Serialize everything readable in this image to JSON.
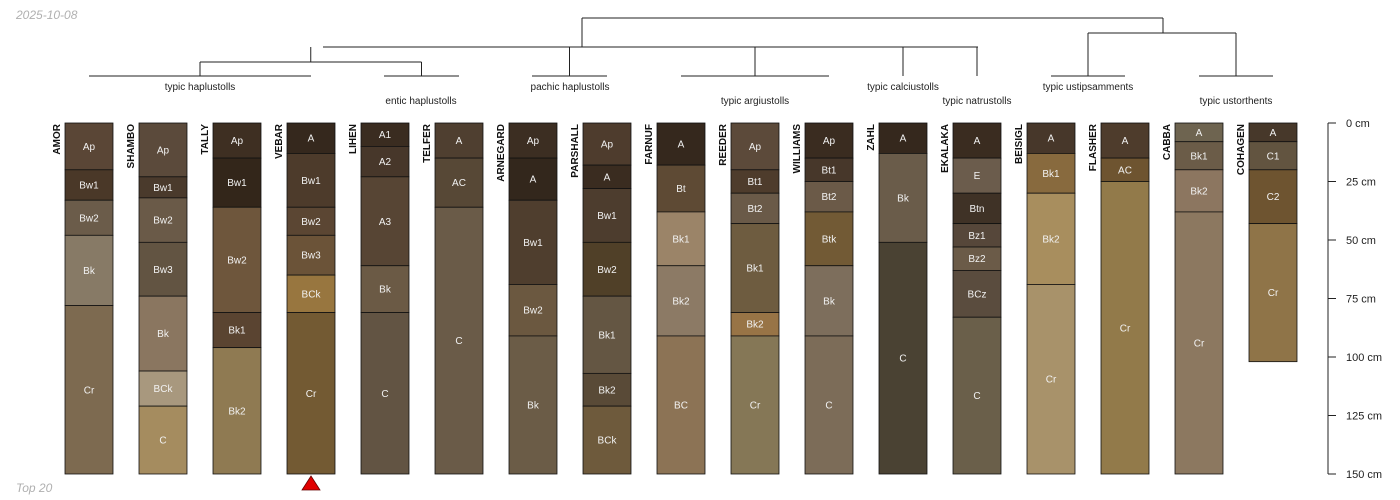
{
  "corner_date": "2025-10-08",
  "corner_note": "Top 20",
  "colors": {
    "line": "#222222",
    "marker": "#e00000",
    "horizon_border": "#111111"
  },
  "chart_data": {
    "type": "soil-profile-sketch",
    "title": "",
    "depth_axis": {
      "label_unit": "cm",
      "range": [
        0,
        150
      ],
      "ticks": [
        0,
        25,
        50,
        75,
        100,
        125,
        150
      ],
      "tick_labels": [
        "0 cm",
        "25 cm",
        "50 cm",
        "75 cm",
        "100 cm",
        "125 cm",
        "150 cm"
      ]
    },
    "dendrogram": {
      "root": "all profiles",
      "merge_order": "typic haplustolls + entic haplustolls, then + pachic haplustolls; typic argiustolls + (typic calciustolls + typic natrustolls); typic ustipsamments + typic ustorthents"
    },
    "groups": [
      {
        "name": "typic haplustolls",
        "members": [
          "AMOR",
          "SHAMBO",
          "TALLY",
          "VEBAR"
        ]
      },
      {
        "name": "entic haplustolls",
        "members": [
          "LIHEN",
          "TELFER"
        ]
      },
      {
        "name": "pachic haplustolls",
        "members": [
          "ARNEGARD",
          "PARSHALL"
        ]
      },
      {
        "name": "typic argiustolls",
        "members": [
          "FARNUF",
          "REEDER",
          "WILLIAMS"
        ]
      },
      {
        "name": "typic calciustolls",
        "members": [
          "ZAHL"
        ]
      },
      {
        "name": "typic natrustolls",
        "members": [
          "EKALAKA"
        ]
      },
      {
        "name": "typic ustipsamments",
        "members": [
          "BEISIGL",
          "FLASHER"
        ]
      },
      {
        "name": "typic ustorthents",
        "members": [
          "CABBA",
          "COHAGEN"
        ]
      }
    ],
    "highlighted_profile": "VEBAR",
    "profiles": [
      {
        "name": "AMOR",
        "horizons": [
          {
            "name": "Ap",
            "top": 0,
            "bottom": 20,
            "color": "#5a4636"
          },
          {
            "name": "Bw1",
            "top": 20,
            "bottom": 33,
            "color": "#4a3828"
          },
          {
            "name": "Bw2",
            "top": 33,
            "bottom": 48,
            "color": "#6b5c4a"
          },
          {
            "name": "Bk",
            "top": 48,
            "bottom": 78,
            "color": "#877a66"
          },
          {
            "name": "Cr",
            "top": 78,
            "bottom": 150,
            "color": "#7d6a50"
          }
        ]
      },
      {
        "name": "SHAMBO",
        "horizons": [
          {
            "name": "Ap",
            "top": 0,
            "bottom": 23,
            "color": "#5b4a3b"
          },
          {
            "name": "Bw1",
            "top": 23,
            "bottom": 32,
            "color": "#4a3a2c"
          },
          {
            "name": "Bw2",
            "top": 32,
            "bottom": 51,
            "color": "#6a5a48"
          },
          {
            "name": "Bw3",
            "top": 51,
            "bottom": 74,
            "color": "#625442"
          },
          {
            "name": "Bk",
            "top": 74,
            "bottom": 106,
            "color": "#8a7660"
          },
          {
            "name": "BCk",
            "top": 106,
            "bottom": 121,
            "color": "#a8987e"
          },
          {
            "name": "C",
            "top": 121,
            "bottom": 150,
            "color": "#a58c5f"
          }
        ]
      },
      {
        "name": "TALLY",
        "horizons": [
          {
            "name": "Ap",
            "top": 0,
            "bottom": 15,
            "color": "#3e2f22"
          },
          {
            "name": "Bw1",
            "top": 15,
            "bottom": 36,
            "color": "#33261a"
          },
          {
            "name": "Bw2",
            "top": 36,
            "bottom": 81,
            "color": "#6e563c"
          },
          {
            "name": "Bk1",
            "top": 81,
            "bottom": 96,
            "color": "#5a4431"
          },
          {
            "name": "Bk2",
            "top": 96,
            "bottom": 150,
            "color": "#8f7a52"
          }
        ]
      },
      {
        "name": "VEBAR",
        "horizons": [
          {
            "name": "A",
            "top": 0,
            "bottom": 13,
            "color": "#35281d"
          },
          {
            "name": "Bw1",
            "top": 13,
            "bottom": 36,
            "color": "#4d3b2b"
          },
          {
            "name": "Bw2",
            "top": 36,
            "bottom": 48,
            "color": "#5b4633"
          },
          {
            "name": "Bw3",
            "top": 48,
            "bottom": 65,
            "color": "#6b5338"
          },
          {
            "name": "BCk",
            "top": 65,
            "bottom": 81,
            "color": "#98763f"
          },
          {
            "name": "Cr",
            "top": 81,
            "bottom": 150,
            "color": "#735a33"
          }
        ]
      },
      {
        "name": "LIHEN",
        "horizons": [
          {
            "name": "A1",
            "top": 0,
            "bottom": 10,
            "color": "#3a2c20"
          },
          {
            "name": "A2",
            "top": 10,
            "bottom": 23,
            "color": "#47372a"
          },
          {
            "name": "A3",
            "top": 23,
            "bottom": 61,
            "color": "#574534"
          },
          {
            "name": "Bk",
            "top": 61,
            "bottom": 81,
            "color": "#6b5a45"
          },
          {
            "name": "C",
            "top": 81,
            "bottom": 150,
            "color": "#625443"
          }
        ]
      },
      {
        "name": "TELFER",
        "horizons": [
          {
            "name": "A",
            "top": 0,
            "bottom": 15,
            "color": "#4f3f30"
          },
          {
            "name": "AC",
            "top": 15,
            "bottom": 36,
            "color": "#574836"
          },
          {
            "name": "C",
            "top": 36,
            "bottom": 150,
            "color": "#6a5b48"
          }
        ]
      },
      {
        "name": "ARNEGARD",
        "horizons": [
          {
            "name": "Ap",
            "top": 0,
            "bottom": 15,
            "color": "#3c2e22"
          },
          {
            "name": "A",
            "top": 15,
            "bottom": 33,
            "color": "#33271c"
          },
          {
            "name": "Bw1",
            "top": 33,
            "bottom": 69,
            "color": "#4f3e2e"
          },
          {
            "name": "Bw2",
            "top": 69,
            "bottom": 91,
            "color": "#6b5840"
          },
          {
            "name": "Bk",
            "top": 91,
            "bottom": 150,
            "color": "#6b5c47"
          }
        ]
      },
      {
        "name": "PARSHALL",
        "horizons": [
          {
            "name": "Ap",
            "top": 0,
            "bottom": 18,
            "color": "#4e3c2d"
          },
          {
            "name": "A",
            "top": 18,
            "bottom": 28,
            "color": "#3a2c20"
          },
          {
            "name": "Bw1",
            "top": 28,
            "bottom": 51,
            "color": "#4d3d2e"
          },
          {
            "name": "Bw2",
            "top": 51,
            "bottom": 74,
            "color": "#504028"
          },
          {
            "name": "Bk1",
            "top": 74,
            "bottom": 107,
            "color": "#645643"
          },
          {
            "name": "Bk2",
            "top": 107,
            "bottom": 121,
            "color": "#594a37"
          },
          {
            "name": "BCk",
            "top": 121,
            "bottom": 150,
            "color": "#6e5a3c"
          }
        ]
      },
      {
        "name": "FARNUF",
        "horizons": [
          {
            "name": "A",
            "top": 0,
            "bottom": 18,
            "color": "#35281d"
          },
          {
            "name": "Bt",
            "top": 18,
            "bottom": 38,
            "color": "#5e4a34"
          },
          {
            "name": "Bk1",
            "top": 38,
            "bottom": 61,
            "color": "#9b8468"
          },
          {
            "name": "Bk2",
            "top": 61,
            "bottom": 91,
            "color": "#8c7a65"
          },
          {
            "name": "BC",
            "top": 91,
            "bottom": 150,
            "color": "#8c7355"
          }
        ]
      },
      {
        "name": "REEDER",
        "horizons": [
          {
            "name": "Ap",
            "top": 0,
            "bottom": 20,
            "color": "#5c4a3a"
          },
          {
            "name": "Bt1",
            "top": 20,
            "bottom": 30,
            "color": "#4e3c2c"
          },
          {
            "name": "Bt2",
            "top": 30,
            "bottom": 43,
            "color": "#6a5a48"
          },
          {
            "name": "Bk1",
            "top": 43,
            "bottom": 81,
            "color": "#6e5c40"
          },
          {
            "name": "Bk2",
            "top": 81,
            "bottom": 91,
            "color": "#987446"
          },
          {
            "name": "Cr",
            "top": 91,
            "bottom": 150,
            "color": "#857756"
          }
        ]
      },
      {
        "name": "WILLIAMS",
        "horizons": [
          {
            "name": "Ap",
            "top": 0,
            "bottom": 15,
            "color": "#3a2c20"
          },
          {
            "name": "Bt1",
            "top": 15,
            "bottom": 25,
            "color": "#47372a"
          },
          {
            "name": "Bt2",
            "top": 25,
            "bottom": 38,
            "color": "#6b5a48"
          },
          {
            "name": "Btk",
            "top": 38,
            "bottom": 61,
            "color": "#725a35"
          },
          {
            "name": "Bk",
            "top": 61,
            "bottom": 91,
            "color": "#7d6e5c"
          },
          {
            "name": "C",
            "top": 91,
            "bottom": 150,
            "color": "#7c6c58"
          }
        ]
      },
      {
        "name": "ZAHL",
        "horizons": [
          {
            "name": "A",
            "top": 0,
            "bottom": 13,
            "color": "#35281d"
          },
          {
            "name": "Bk",
            "top": 13,
            "bottom": 51,
            "color": "#6a5c4a"
          },
          {
            "name": "C",
            "top": 51,
            "bottom": 150,
            "color": "#4a4233"
          }
        ]
      },
      {
        "name": "EKALAKA",
        "horizons": [
          {
            "name": "A",
            "top": 0,
            "bottom": 15,
            "color": "#3a2c20"
          },
          {
            "name": "E",
            "top": 15,
            "bottom": 30,
            "color": "#6b5c4c"
          },
          {
            "name": "Btn",
            "top": 30,
            "bottom": 43,
            "color": "#3f3226"
          },
          {
            "name": "Bz1",
            "top": 43,
            "bottom": 53,
            "color": "#56473a"
          },
          {
            "name": "Bz2",
            "top": 53,
            "bottom": 63,
            "color": "#6b5b48"
          },
          {
            "name": "BCz",
            "top": 63,
            "bottom": 83,
            "color": "#5a4c3e"
          },
          {
            "name": "C",
            "top": 83,
            "bottom": 150,
            "color": "#6a5f4a"
          }
        ]
      },
      {
        "name": "BEISIGL",
        "horizons": [
          {
            "name": "A",
            "top": 0,
            "bottom": 13,
            "color": "#47372a"
          },
          {
            "name": "Bk1",
            "top": 13,
            "bottom": 30,
            "color": "#886a3e"
          },
          {
            "name": "Bk2",
            "top": 30,
            "bottom": 69,
            "color": "#a88e5e"
          },
          {
            "name": "Cr",
            "top": 69,
            "bottom": 150,
            "color": "#a8926a"
          }
        ]
      },
      {
        "name": "FLASHER",
        "horizons": [
          {
            "name": "A",
            "top": 0,
            "bottom": 15,
            "color": "#4e3c2c"
          },
          {
            "name": "AC",
            "top": 15,
            "bottom": 25,
            "color": "#6e5430"
          },
          {
            "name": "Cr",
            "top": 25,
            "bottom": 150,
            "color": "#927a4a"
          }
        ]
      },
      {
        "name": "CABBA",
        "horizons": [
          {
            "name": "A",
            "top": 0,
            "bottom": 8,
            "color": "#6e6450"
          },
          {
            "name": "Bk1",
            "top": 8,
            "bottom": 20,
            "color": "#6b5c48"
          },
          {
            "name": "Bk2",
            "top": 20,
            "bottom": 38,
            "color": "#8c7660"
          },
          {
            "name": "Cr",
            "top": 38,
            "bottom": 150,
            "color": "#8c7860"
          }
        ]
      },
      {
        "name": "COHAGEN",
        "horizons": [
          {
            "name": "A",
            "top": 0,
            "bottom": 8,
            "color": "#47382a"
          },
          {
            "name": "C1",
            "top": 8,
            "bottom": 20,
            "color": "#625440"
          },
          {
            "name": "C2",
            "top": 20,
            "bottom": 43,
            "color": "#6e5430"
          },
          {
            "name": "Cr",
            "top": 43,
            "bottom": 102,
            "color": "#8f7448"
          }
        ]
      }
    ]
  }
}
